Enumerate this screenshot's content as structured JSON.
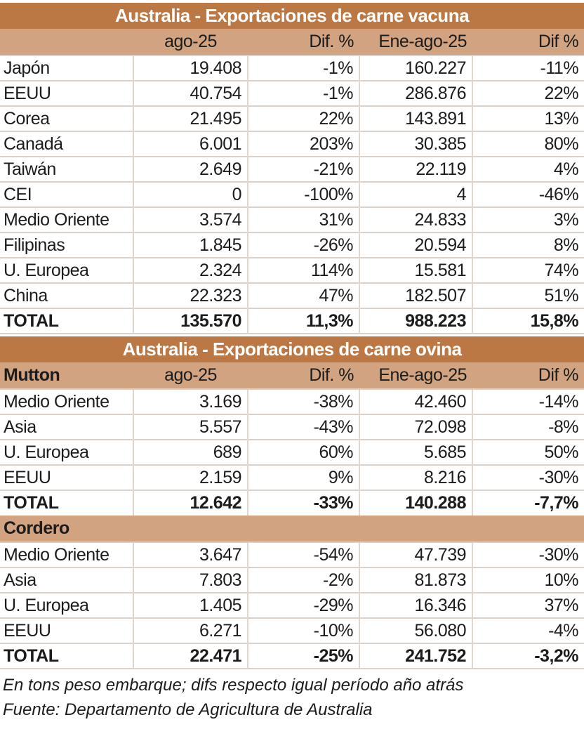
{
  "colors": {
    "title_bg": "#bb7845",
    "band_bg": "#d1a381",
    "title_text": "#ffffff",
    "body_text": "#1c1c1c",
    "gridline": "#dad2ca"
  },
  "chart_data": [
    {
      "type": "table",
      "title": "Australia - Exportaciones de carne vacuna",
      "sections": [
        {
          "label": "",
          "columns": [
            "ago-25",
            "Dif. %",
            "Ene-ago-25",
            "Dif %"
          ],
          "rows": [
            {
              "label": "Japón",
              "values": [
                "19.408",
                "-1%",
                "160.227",
                "-11%"
              ]
            },
            {
              "label": "EEUU",
              "values": [
                "40.754",
                "-1%",
                "286.876",
                "22%"
              ]
            },
            {
              "label": "Corea",
              "values": [
                "21.495",
                "22%",
                "143.891",
                "13%"
              ]
            },
            {
              "label": "Canadá",
              "values": [
                "6.001",
                "203%",
                "30.385",
                "80%"
              ]
            },
            {
              "label": "Taiwán",
              "values": [
                "2.649",
                "-21%",
                "22.119",
                "4%"
              ]
            },
            {
              "label": "CEI",
              "values": [
                "0",
                "-100%",
                "4",
                "-46%"
              ]
            },
            {
              "label": "Medio Oriente",
              "values": [
                "3.574",
                "31%",
                "24.833",
                "3%"
              ]
            },
            {
              "label": "Filipinas",
              "values": [
                "1.845",
                "-26%",
                "20.594",
                "8%"
              ]
            },
            {
              "label": "U. Europea",
              "values": [
                "2.324",
                "114%",
                "15.581",
                "74%"
              ]
            },
            {
              "label": "China",
              "values": [
                "22.323",
                "47%",
                "182.507",
                "51%"
              ]
            },
            {
              "label": "TOTAL",
              "values": [
                "135.570",
                "11,3%",
                "988.223",
                "15,8%"
              ],
              "total": true
            }
          ]
        }
      ]
    },
    {
      "type": "table",
      "title": "Australia - Exportaciones de carne ovina",
      "sections": [
        {
          "label": "Mutton",
          "columns": [
            "ago-25",
            "Dif. %",
            "Ene-ago-25",
            "Dif %"
          ],
          "rows": [
            {
              "label": "Medio Oriente",
              "values": [
                "3.169",
                "-38%",
                "42.460",
                "-14%"
              ]
            },
            {
              "label": "Asia",
              "values": [
                "5.557",
                "-43%",
                "72.098",
                "-8%"
              ]
            },
            {
              "label": "U. Europea",
              "values": [
                "689",
                "60%",
                "5.685",
                "50%"
              ]
            },
            {
              "label": "EEUU",
              "values": [
                "2.159",
                "9%",
                "8.216",
                "-30%"
              ]
            },
            {
              "label": "TOTAL",
              "values": [
                "12.642",
                "-33%",
                "140.288",
                "-7,7%"
              ],
              "total": true
            }
          ]
        },
        {
          "label": "Cordero",
          "rows": [
            {
              "label": "Medio Oriente",
              "values": [
                "3.647",
                "-54%",
                "47.739",
                "-30%"
              ]
            },
            {
              "label": "Asia",
              "values": [
                "7.803",
                "-2%",
                "81.873",
                "10%"
              ]
            },
            {
              "label": "U. Europea",
              "values": [
                "1.405",
                "-29%",
                "16.346",
                "37%"
              ]
            },
            {
              "label": "EEUU",
              "values": [
                "6.271",
                "-10%",
                "56.080",
                "-4%"
              ]
            },
            {
              "label": "TOTAL",
              "values": [
                "22.471",
                "-25%",
                "241.752",
                "-3,2%"
              ],
              "total": true
            }
          ]
        }
      ]
    }
  ],
  "footnotes": [
    "En tons peso embarque; difs respecto igual período año atrás",
    "Fuente: Departamento de Agricultura de Australia"
  ]
}
